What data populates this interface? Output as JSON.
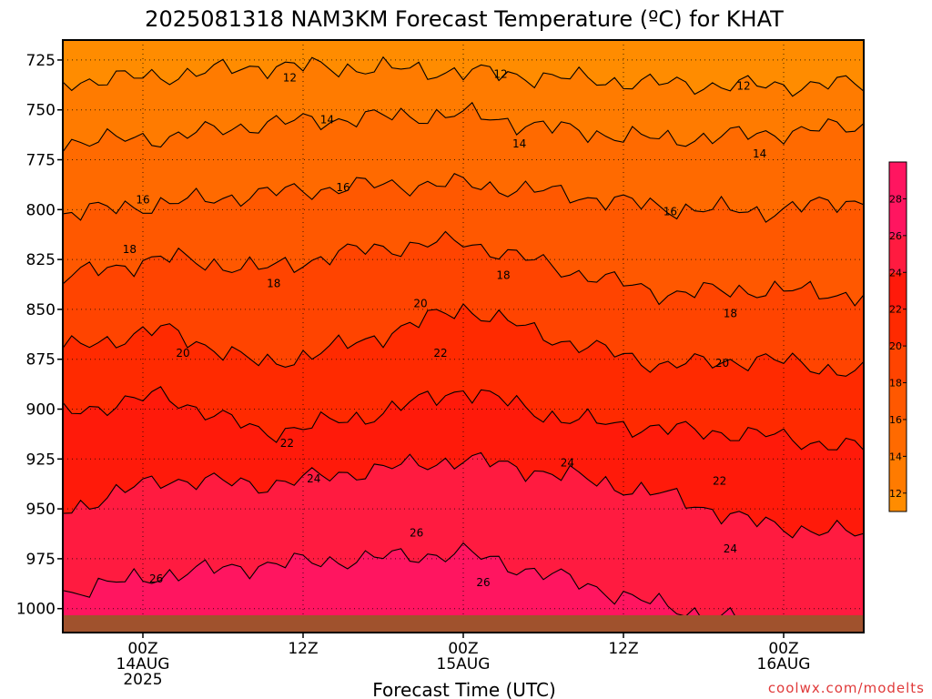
{
  "credit": "coolwx.com/modelts",
  "colors": {
    "bands": [
      "#ff8c00",
      "#ff7b00",
      "#ff6a00",
      "#ff5800",
      "#ff4400",
      "#ff2a00",
      "#ff1a0a",
      "#ff1b40",
      "#ff1560",
      "#ff0a80",
      "#ff0097"
    ],
    "ground": "#a0522d",
    "contour": "#000000"
  },
  "chart_data": {
    "type": "heatmap",
    "title": "2025081318 NAM3KM Forecast Temperature (ºC) for KHAT",
    "xlabel": "Forecast Time (UTC)",
    "ylabel": "",
    "y_axis": {
      "label": "",
      "ticks": [
        725,
        750,
        775,
        800,
        825,
        850,
        875,
        900,
        925,
        950,
        975,
        1000
      ],
      "range": [
        1012,
        715
      ]
    },
    "x_axis": {
      "range_hours": [
        -6,
        54
      ],
      "ticks": [
        {
          "hour": 0,
          "lines": [
            "00Z",
            "14AUG",
            "2025"
          ]
        },
        {
          "hour": 12,
          "lines": [
            "12Z"
          ]
        },
        {
          "hour": 24,
          "lines": [
            "00Z",
            "15AUG"
          ]
        },
        {
          "hour": 36,
          "lines": [
            "12Z"
          ]
        },
        {
          "hour": 48,
          "lines": [
            "00Z",
            "16AUG"
          ]
        }
      ]
    },
    "grid": true,
    "colorbar": {
      "ticks": [
        12,
        14,
        16,
        18,
        20,
        22,
        24,
        26,
        28
      ],
      "range": [
        11,
        30
      ],
      "placement": "right"
    },
    "contour_levels": [
      12,
      14,
      16,
      18,
      20,
      22,
      24,
      26
    ],
    "contours": [
      {
        "level": 12,
        "p": [
          736,
          733,
          728,
          729,
          731,
          734,
          737,
          738,
          737
        ]
      },
      {
        "level": 14,
        "p": [
          766,
          764,
          757,
          754,
          752,
          760,
          765,
          762,
          758
        ]
      },
      {
        "level": 16,
        "p": [
          802,
          797,
          792,
          788,
          787,
          792,
          799,
          801,
          795
        ]
      },
      {
        "level": 18,
        "p": [
          834,
          824,
          830,
          820,
          816,
          830,
          842,
          840,
          843
        ]
      },
      {
        "level": 20,
        "p": [
          870,
          860,
          878,
          866,
          849,
          866,
          878,
          875,
          882
        ]
      },
      {
        "level": 22,
        "p": [
          902,
          893,
          912,
          904,
          890,
          905,
          910,
          913,
          920
        ]
      },
      {
        "level": 24,
        "p": [
          951,
          935,
          938,
          931,
          925,
          933,
          943,
          958,
          963
        ]
      },
      {
        "level": 26,
        "p": [
          992,
          983,
          978,
          975,
          972,
          985,
          999,
          1008,
          1012
        ]
      }
    ],
    "contour_labels": [
      {
        "text": "12",
        "hour": 11,
        "p": 734
      },
      {
        "text": "12",
        "hour": 26.8,
        "p": 732
      },
      {
        "text": "12",
        "hour": 45,
        "p": 738
      },
      {
        "text": "14",
        "hour": 13.8,
        "p": 755
      },
      {
        "text": "14",
        "hour": 28.2,
        "p": 767
      },
      {
        "text": "14",
        "hour": 46.2,
        "p": 772
      },
      {
        "text": "16",
        "hour": 0,
        "p": 795
      },
      {
        "text": "16",
        "hour": 15,
        "p": 789
      },
      {
        "text": "16",
        "hour": 39.5,
        "p": 801
      },
      {
        "text": "18",
        "hour": -1,
        "p": 820
      },
      {
        "text": "18",
        "hour": 9.8,
        "p": 837
      },
      {
        "text": "18",
        "hour": 27,
        "p": 833
      },
      {
        "text": "18",
        "hour": 44,
        "p": 852
      },
      {
        "text": "20",
        "hour": 3,
        "p": 872
      },
      {
        "text": "20",
        "hour": 20.8,
        "p": 847
      },
      {
        "text": "20",
        "hour": 43.4,
        "p": 877
      },
      {
        "text": "22",
        "hour": 22.3,
        "p": 872
      },
      {
        "text": "22",
        "hour": 10.8,
        "p": 917
      },
      {
        "text": "22",
        "hour": 43.2,
        "p": 936
      },
      {
        "text": "24",
        "hour": 12.8,
        "p": 935
      },
      {
        "text": "24",
        "hour": 31.8,
        "p": 927
      },
      {
        "text": "24",
        "hour": 44,
        "p": 970
      },
      {
        "text": "26",
        "hour": 20.5,
        "p": 962
      },
      {
        "text": "26",
        "hour": 1,
        "p": 985
      },
      {
        "text": "26",
        "hour": 25.5,
        "p": 987
      }
    ]
  }
}
